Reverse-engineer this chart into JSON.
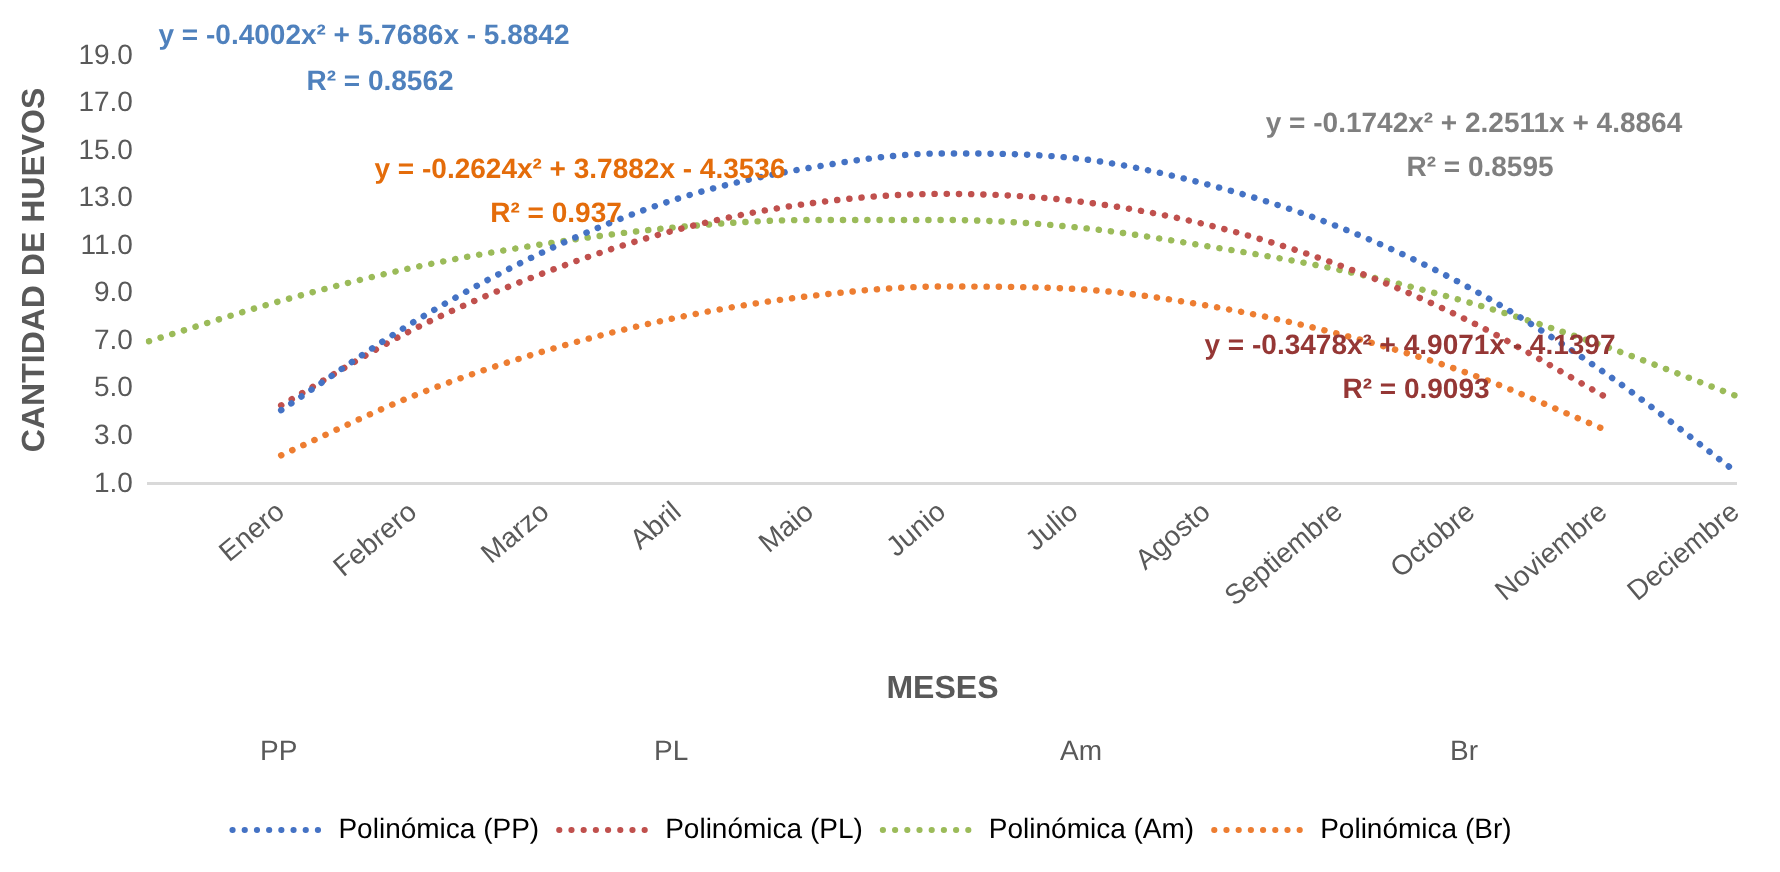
{
  "chart_data": {
    "type": "line",
    "xlabel": "MESES",
    "ylabel": "CANTIDAD DE HUEVOS",
    "categories": [
      null,
      "Enero",
      "Febrero",
      "Marzo",
      "Abril",
      "Maio",
      "Junio",
      "Julio",
      "Agosto",
      "Septiembre",
      "Octobre",
      "Noviembre",
      "Deciembre"
    ],
    "series": [
      {
        "name": "Polinómica (PP)",
        "color": "#4472c4",
        "values": [
          null,
          4.1,
          7.8,
          10.8,
          13.0,
          14.3,
          14.9,
          14.7,
          13.6,
          11.8,
          9.2,
          5.7,
          1.5
        ]
      },
      {
        "name": "Polinómica (PL)",
        "color": "#c0504d",
        "values": [
          null,
          4.3,
          7.5,
          9.9,
          11.7,
          12.8,
          13.2,
          12.9,
          11.9,
          10.2,
          7.8,
          4.7,
          null
        ]
      },
      {
        "name": "Polinómica (Am)",
        "color": "#9bbb59",
        "values": [
          7.0,
          8.7,
          10.1,
          11.1,
          11.8,
          12.1,
          12.1,
          11.8,
          11.0,
          10.0,
          8.6,
          6.8,
          4.7
        ]
      },
      {
        "name": "Polinómica (Br)",
        "color": "#ed7d31",
        "values": [
          null,
          2.2,
          4.7,
          6.6,
          8.0,
          8.9,
          9.3,
          9.2,
          8.5,
          7.3,
          5.6,
          3.3,
          null
        ]
      }
    ],
    "ylim": [
      1,
      19
    ],
    "yticks": [
      {
        "value": 1,
        "label": "1.0"
      },
      {
        "value": 3,
        "label": "3.0"
      },
      {
        "value": 5,
        "label": "5.0"
      },
      {
        "value": 7,
        "label": "7.0"
      },
      {
        "value": 9,
        "label": "9.0"
      },
      {
        "value": 11,
        "label": "11.0"
      },
      {
        "value": 13,
        "label": "13.0"
      },
      {
        "value": 15,
        "label": "15.0"
      },
      {
        "value": 17,
        "label": "17.0"
      },
      {
        "value": 19,
        "label": "19.0"
      }
    ],
    "annotations": [
      "y = -0.4002x² + 5.7686x - 5.8842",
      "R² = 0.8562",
      "y = -0.2624x² + 3.7882x - 4.3536",
      "R² = 0.937",
      "y = -0.1742x² + 2.2511x + 4.8864",
      "R² = 0.8595",
      "y = -0.3478x² + 4.9071x - 4.1397",
      "R² = 0.9093",
      "PP",
      "PL",
      "Am",
      "Br"
    ],
    "grid": false,
    "legend": "bottom",
    "marker": "none",
    "line_style": "dotted"
  }
}
